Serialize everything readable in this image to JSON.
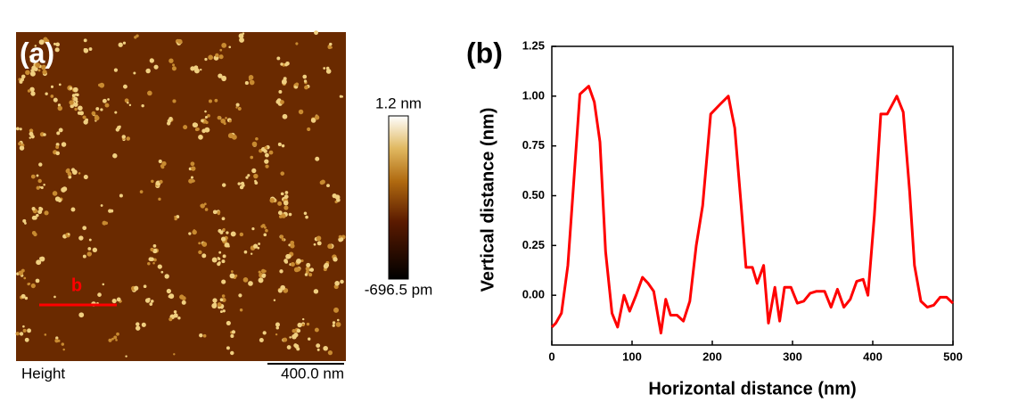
{
  "panel_a": {
    "label": "(a)",
    "scan_label": "Height",
    "scale_bar": "400.0 nm",
    "colorbar_max": "1.2 nm",
    "colorbar_min": "-696.5 pm",
    "line_label": "b"
  },
  "chart_data": {
    "type": "line",
    "panel_label": "(b)",
    "x_label": "Horizontal distance (nm)",
    "y_label": "Vertical distance (nm)",
    "x": [
      0,
      5,
      12,
      20,
      27,
      35,
      46,
      53,
      60,
      67,
      75,
      82,
      90,
      97,
      105,
      113,
      120,
      127,
      136,
      142,
      148,
      156,
      164,
      172,
      180,
      188,
      198,
      210,
      220,
      228,
      236,
      242,
      250,
      256,
      264,
      270,
      278,
      284,
      290,
      298,
      306,
      314,
      322,
      330,
      340,
      348,
      356,
      364,
      372,
      380,
      388,
      394,
      402,
      410,
      418,
      430,
      438,
      446,
      452,
      460,
      468,
      476,
      484,
      492,
      500
    ],
    "series": [
      {
        "color": "#ff0000",
        "values": [
          -0.16,
          -0.14,
          -0.09,
          0.15,
          0.55,
          1.01,
          1.05,
          0.97,
          0.77,
          0.22,
          -0.09,
          -0.16,
          0.0,
          -0.08,
          0.0,
          0.09,
          0.06,
          0.02,
          -0.19,
          -0.02,
          -0.1,
          -0.1,
          -0.13,
          -0.03,
          0.25,
          0.45,
          0.91,
          0.96,
          1.0,
          0.84,
          0.45,
          0.14,
          0.14,
          0.06,
          0.15,
          -0.14,
          0.04,
          -0.13,
          0.04,
          0.04,
          -0.04,
          -0.03,
          0.01,
          0.02,
          0.02,
          -0.06,
          0.03,
          -0.06,
          -0.02,
          0.07,
          0.08,
          0.0,
          0.4,
          0.91,
          0.91,
          1.0,
          0.92,
          0.52,
          0.15,
          -0.03,
          -0.06,
          -0.05,
          -0.01,
          -0.01,
          -0.04
        ]
      }
    ],
    "xlim": [
      0,
      500
    ],
    "xticks": [
      0,
      100,
      200,
      300,
      400,
      500
    ],
    "ylim": [
      -0.25,
      1.25
    ],
    "yticks": [
      {
        "value": 0,
        "label": "0.00"
      },
      0.25,
      {
        "value": 0.5,
        "label": "0.50"
      },
      0.75,
      {
        "value": 1,
        "label": "1.00"
      },
      1.25
    ]
  }
}
